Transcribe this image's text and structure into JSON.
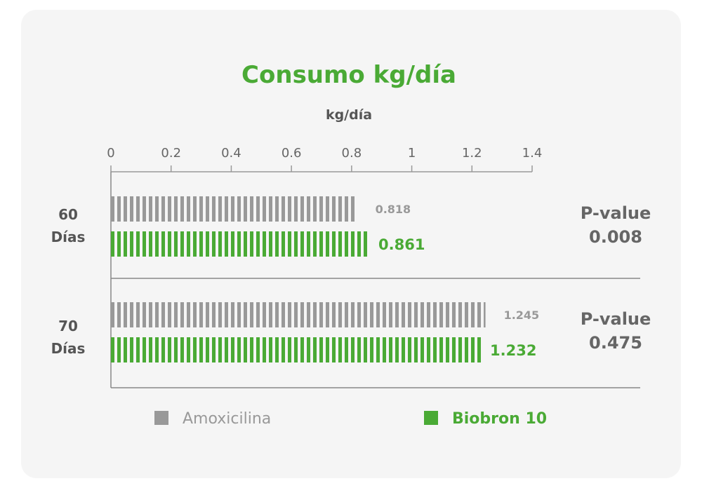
{
  "chart_data": {
    "type": "bar",
    "orientation": "horizontal",
    "title": "Consumo kg/día",
    "xlabel": "kg/día",
    "xlim": [
      0,
      1.4
    ],
    "xticks": [
      "0",
      "0.2",
      "0.4",
      "0.6",
      "0.8",
      "1",
      "1.2",
      "1.4"
    ],
    "xtick_values": [
      0,
      0.2,
      0.4,
      0.6,
      0.8,
      1,
      1.2,
      1.4
    ],
    "groups": [
      {
        "label_line1": "60",
        "label_line2": "Días",
        "pvalue_label": "P-value",
        "pvalue": "0.008",
        "values": [
          0.818,
          0.861
        ],
        "value_labels": [
          "0.818",
          "0.861"
        ]
      },
      {
        "label_line1": "70",
        "label_line2": "Días",
        "pvalue_label": "P-value",
        "pvalue": "0.475",
        "values": [
          1.245,
          1.232
        ],
        "value_labels": [
          "1.245",
          "1.232"
        ]
      }
    ],
    "series": [
      {
        "name": "Amoxicilina",
        "color": "#999999"
      },
      {
        "name": "Biobron 10",
        "color": "#4aaa35"
      }
    ],
    "title_color": "#4aaa35",
    "legend_position": "bottom"
  }
}
